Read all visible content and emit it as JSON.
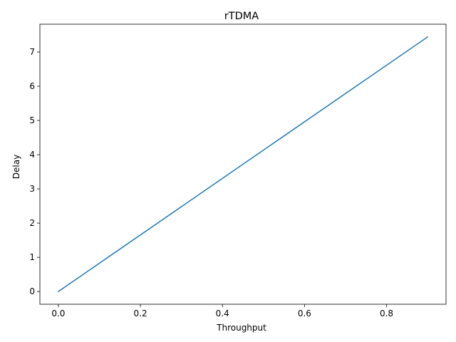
{
  "chart_data": {
    "type": "line",
    "title": "rTDMA",
    "xlabel": "Throughput",
    "ylabel": "Delay",
    "xlim": [
      -0.045,
      0.945
    ],
    "ylim": [
      -0.372,
      7.812
    ],
    "x_ticks": [
      0.0,
      0.2,
      0.4,
      0.6,
      0.8
    ],
    "x_tick_labels": [
      "0.0",
      "0.2",
      "0.4",
      "0.6",
      "0.8"
    ],
    "y_ticks": [
      0,
      1,
      2,
      3,
      4,
      5,
      6,
      7
    ],
    "y_tick_labels": [
      "0",
      "1",
      "2",
      "3",
      "4",
      "5",
      "6",
      "7"
    ],
    "grid": false,
    "series": [
      {
        "color": "#1f77b4",
        "x": [
          0.0,
          0.9
        ],
        "y": [
          0.0,
          7.44
        ]
      }
    ]
  }
}
